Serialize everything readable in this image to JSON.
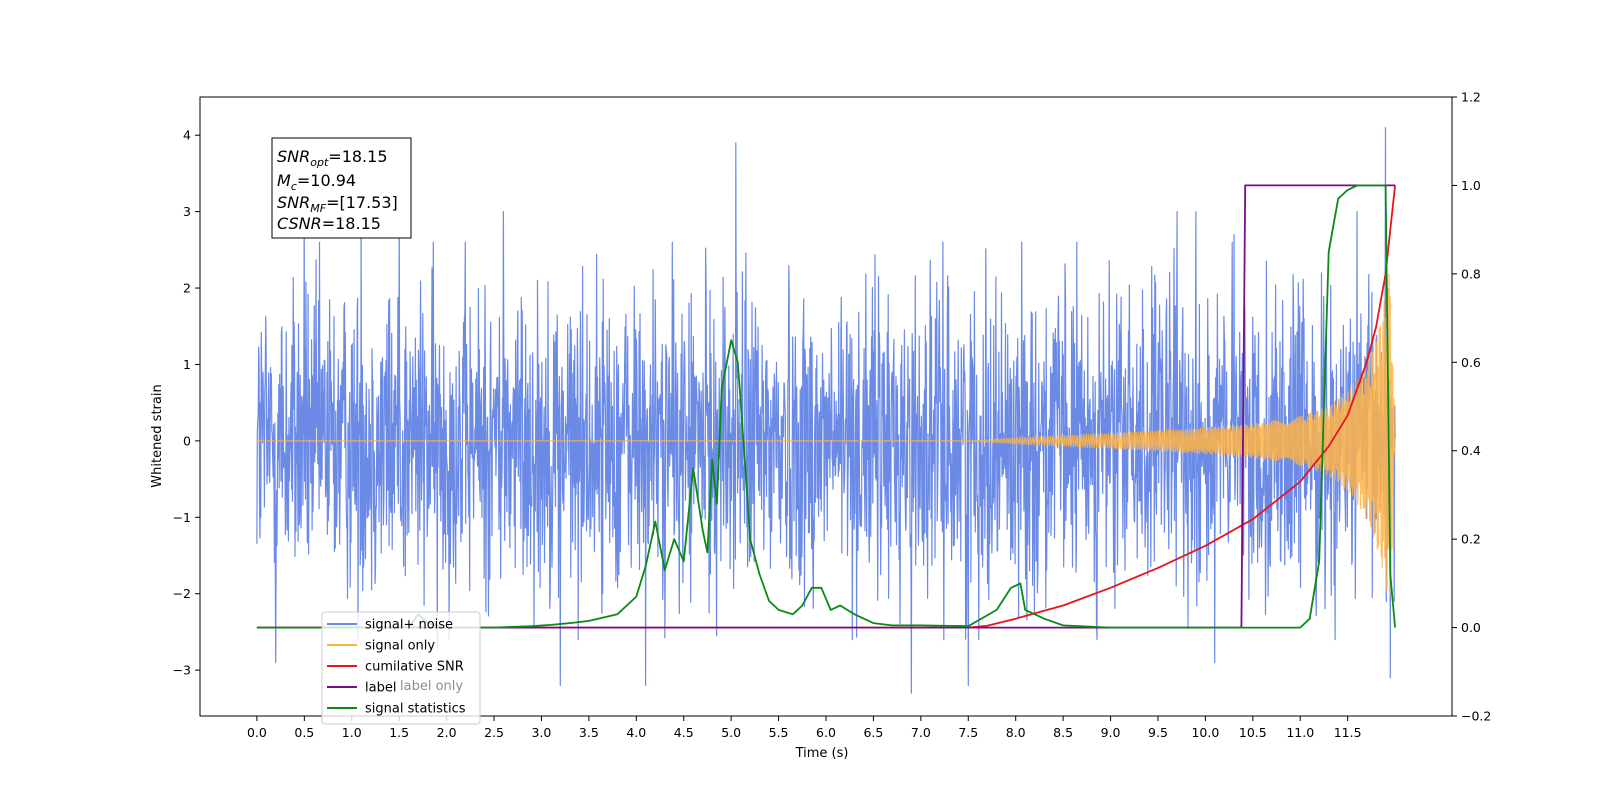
{
  "chart_data": {
    "type": "line",
    "title": "",
    "xlabel": "Time (s)",
    "ylabel": "Whitened strain",
    "xlim": [
      -0.6,
      12.6
    ],
    "ylim": [
      -3.6,
      4.5
    ],
    "y2lim": [
      -0.2,
      1.2
    ],
    "x_ticks": [
      "0.0",
      "0.5",
      "1.0",
      "1.5",
      "2.0",
      "2.5",
      "3.0",
      "3.5",
      "4.0",
      "4.5",
      "5.0",
      "5.5",
      "6.0",
      "6.5",
      "7.0",
      "7.5",
      "8.0",
      "8.5",
      "9.0",
      "9.5",
      "10.0",
      "10.5",
      "11.0",
      "11.5"
    ],
    "y_ticks": [
      "−3",
      "−2",
      "−1",
      "0",
      "1",
      "2",
      "3",
      "4"
    ],
    "y2_ticks": [
      "−0.2",
      "0.0",
      "0.2",
      "0.4",
      "0.6",
      "0.8",
      "1.0",
      "1.2"
    ],
    "legend_position": "lower-left",
    "legend": [
      {
        "label": "signal+ noise",
        "color": "#6a8ae6"
      },
      {
        "label": "signal only",
        "color": "#ffb347"
      },
      {
        "label": "cumilative SNR",
        "color": "#e8141b"
      },
      {
        "label": "label",
        "color": "#7b0a8c"
      },
      {
        "label": "signal statistics",
        "color": "#0a8a14"
      }
    ],
    "partially_hidden_legend_labels": [
      "label only"
    ],
    "annotation": {
      "snr_opt": {
        "base": "SNR",
        "sub": "opt",
        "value": "=18.15"
      },
      "mc": {
        "base": "M",
        "sub": "c",
        "value": "=10.94"
      },
      "snr_mf": {
        "base": "SNR",
        "sub": "MF",
        "value": "=[17.53]"
      },
      "csnr": {
        "base": "CSNR",
        "sub": "",
        "value": "=18.15"
      }
    },
    "series": [
      {
        "name": "signal+ noise",
        "axis": "left",
        "style": "noise",
        "color": "#6a8ae6",
        "x_range": [
          0.0,
          12.0
        ],
        "typical_amplitude": 1.6,
        "peaks": [
          [
            5.05,
            3.9
          ],
          [
            11.9,
            4.1
          ],
          [
            0.5,
            3.1
          ],
          [
            1.1,
            2.9
          ],
          [
            1.5,
            3.0
          ],
          [
            2.6,
            3.0
          ],
          [
            9.9,
            3.0
          ],
          [
            9.7,
            3.0
          ],
          [
            11.6,
            3.0
          ],
          [
            10.3,
            2.7
          ]
        ],
        "troughs": [
          [
            0.2,
            -2.9
          ],
          [
            3.2,
            -3.2
          ],
          [
            4.1,
            -3.2
          ],
          [
            6.9,
            -3.3
          ],
          [
            7.5,
            -3.2
          ],
          [
            10.1,
            -2.9
          ],
          [
            11.95,
            -3.1
          ],
          [
            1.9,
            -2.7
          ]
        ]
      },
      {
        "name": "signal only",
        "axis": "left",
        "style": "chirp",
        "color": "#ffb347",
        "x": [
          0.0,
          7.5,
          8.0,
          9.0,
          10.0,
          10.5,
          11.0,
          11.3,
          11.5,
          11.7,
          11.85,
          11.95,
          12.0
        ],
        "envelope": [
          0.0,
          0.0,
          0.04,
          0.1,
          0.17,
          0.22,
          0.32,
          0.45,
          0.65,
          1.0,
          1.6,
          2.3,
          0.0
        ]
      },
      {
        "name": "cumilative SNR",
        "axis": "right",
        "color": "#e8141b",
        "x": [
          0.0,
          7.5,
          7.7,
          8.0,
          8.5,
          9.0,
          9.5,
          10.0,
          10.5,
          11.0,
          11.3,
          11.5,
          11.7,
          11.8,
          11.9,
          11.95,
          12.0
        ],
        "y": [
          0.0,
          0.0,
          0.004,
          0.02,
          0.05,
          0.09,
          0.135,
          0.185,
          0.245,
          0.33,
          0.41,
          0.48,
          0.6,
          0.68,
          0.8,
          0.9,
          1.0
        ]
      },
      {
        "name": "label",
        "axis": "right",
        "color": "#7b0a8c",
        "x": [
          0.0,
          10.38,
          10.42,
          12.0
        ],
        "y": [
          0.0,
          0.0,
          1.0,
          1.0
        ]
      },
      {
        "name": "signal statistics",
        "axis": "right",
        "color": "#0a8a14",
        "x": [
          0.0,
          1.6,
          1.7,
          1.8,
          2.0,
          2.5,
          2.9,
          3.1,
          3.3,
          3.5,
          3.7,
          3.8,
          3.9,
          4.0,
          4.1,
          4.2,
          4.3,
          4.4,
          4.5,
          4.6,
          4.7,
          4.75,
          4.8,
          4.85,
          4.9,
          5.0,
          5.07,
          5.15,
          5.2,
          5.3,
          5.4,
          5.5,
          5.65,
          5.75,
          5.85,
          5.95,
          6.05,
          6.15,
          6.3,
          6.5,
          6.7,
          7.0,
          7.5,
          7.8,
          7.95,
          8.05,
          8.1,
          8.2,
          8.3,
          8.5,
          9.0,
          10.0,
          11.0,
          11.1,
          11.2,
          11.3,
          11.4,
          11.5,
          11.6,
          11.9,
          11.95,
          12.0
        ],
        "y": [
          0.0,
          0.0,
          0.03,
          0.01,
          0.0,
          0.0,
          0.003,
          0.006,
          0.01,
          0.015,
          0.025,
          0.03,
          0.05,
          0.07,
          0.14,
          0.24,
          0.13,
          0.2,
          0.15,
          0.36,
          0.22,
          0.17,
          0.38,
          0.28,
          0.54,
          0.65,
          0.6,
          0.36,
          0.2,
          0.12,
          0.06,
          0.04,
          0.03,
          0.05,
          0.09,
          0.09,
          0.04,
          0.05,
          0.03,
          0.01,
          0.005,
          0.005,
          0.003,
          0.04,
          0.09,
          0.1,
          0.04,
          0.03,
          0.02,
          0.005,
          0.0,
          0.0,
          0.0,
          0.02,
          0.15,
          0.85,
          0.97,
          0.99,
          1.0,
          1.0,
          0.12,
          0.0
        ]
      }
    ]
  }
}
